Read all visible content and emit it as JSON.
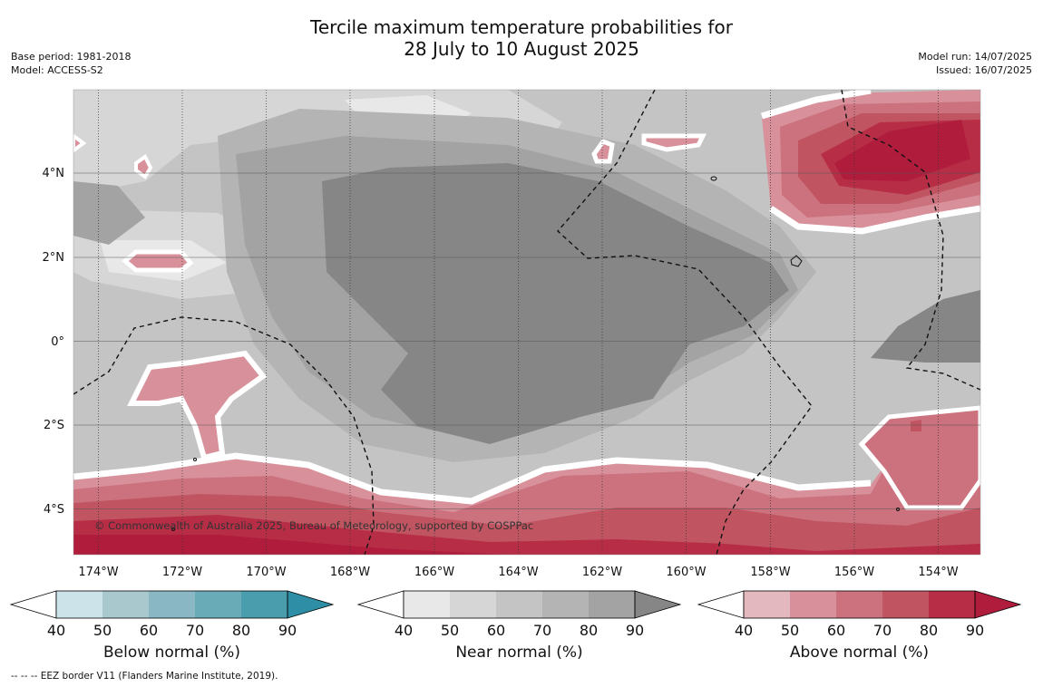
{
  "title": {
    "line1": "Tercile maximum temperature probabilities for",
    "line2": "28 July to 10 August 2025"
  },
  "meta_left": {
    "base_period": "Base period: 1981-2018",
    "model": "Model: ACCESS-S2"
  },
  "meta_right": {
    "model_run": "Model run: 14/07/2025",
    "issued": "Issued: 16/07/2025"
  },
  "map": {
    "lon_labels": [
      "174°W",
      "172°W",
      "170°W",
      "168°W",
      "166°W",
      "164°W",
      "162°W",
      "160°W",
      "158°W",
      "156°W",
      "154°W"
    ],
    "lat_labels": [
      "4°N",
      "2°N",
      "0°",
      "2°S",
      "4°S"
    ],
    "copyright": "© Commonwealth of Australia 2025, Bureau of Meteorology, supported by COSPPac",
    "border_style": "dashed",
    "colors": {
      "near": [
        "#e8e8e8",
        "#d6d6d6",
        "#c4c4c4",
        "#b4b4b4",
        "#a3a3a3",
        "#868686"
      ],
      "above": [
        "#e3b8bf",
        "#d8919b",
        "#cc727e",
        "#c05561",
        "#b72d46",
        "#b01c3c"
      ]
    }
  },
  "colorbars": [
    {
      "title": "Below normal (%)",
      "ticks": [
        "40",
        "50",
        "60",
        "70",
        "80",
        "90"
      ],
      "colors": [
        "#ffffff",
        "#cce3ea",
        "#a8c8ce",
        "#8ab7c4",
        "#6aabb8",
        "#4a9dad",
        "#2e8ea5"
      ]
    },
    {
      "title": "Near normal (%)",
      "ticks": [
        "40",
        "50",
        "60",
        "70",
        "80",
        "90"
      ],
      "colors": [
        "#ffffff",
        "#e8e8e8",
        "#d6d6d6",
        "#c4c4c4",
        "#b4b4b4",
        "#a3a3a3",
        "#868686"
      ]
    },
    {
      "title": "Above normal (%)",
      "ticks": [
        "40",
        "50",
        "60",
        "70",
        "80",
        "90"
      ],
      "colors": [
        "#ffffff",
        "#e3b8bf",
        "#d8919b",
        "#cc727e",
        "#c05561",
        "#b72d46",
        "#b01c3c"
      ]
    }
  ],
  "footnote": "--  --  -- EEZ border V11 (Flanders Marine Institute, 2019)."
}
